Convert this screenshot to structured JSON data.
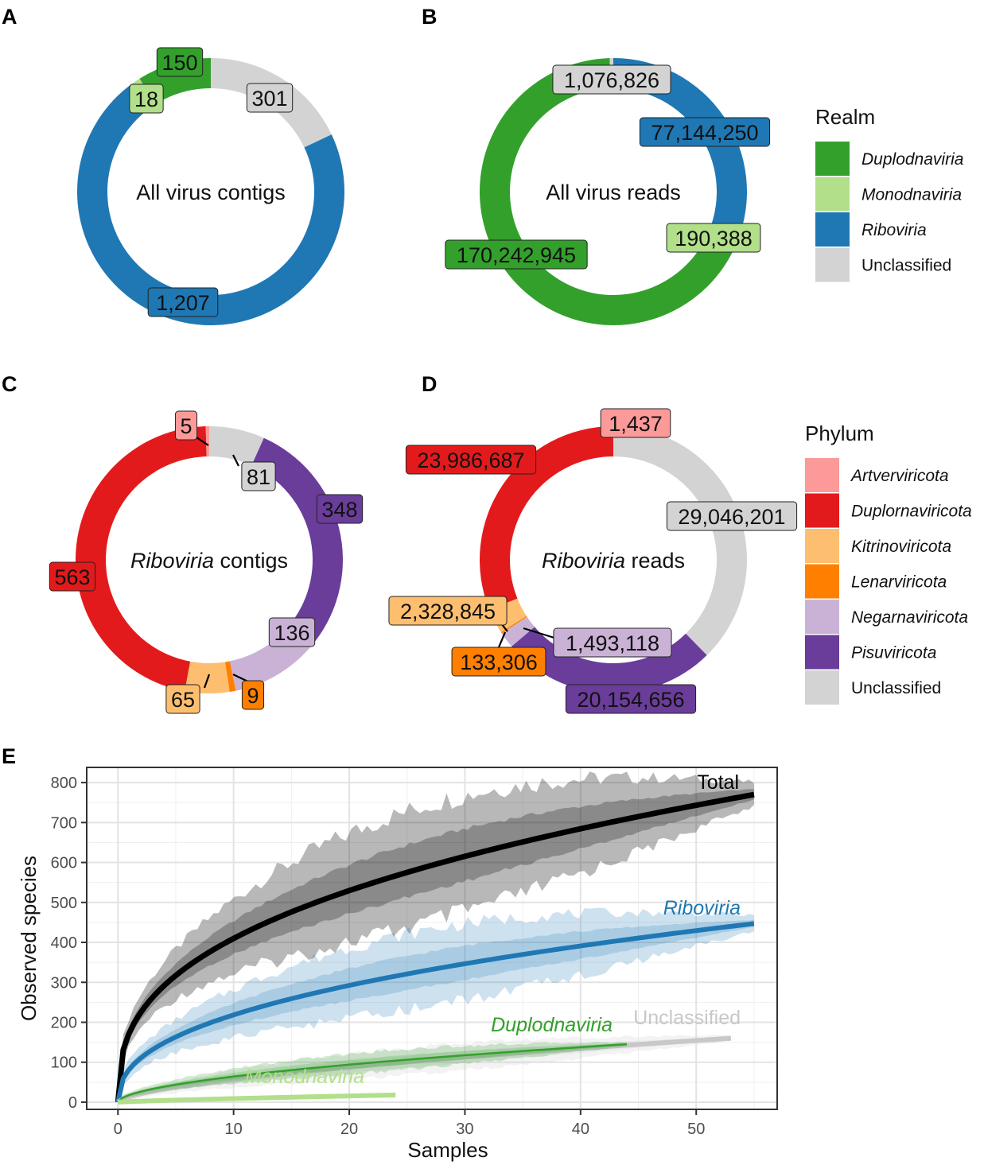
{
  "chart_data": [
    {
      "panel": "A",
      "type": "pie",
      "variant": "donut",
      "center_label": {
        "normal": "All virus contigs",
        "italic": ""
      },
      "legend_group": "realm",
      "slices": [
        {
          "category": "Unclassified",
          "value": 301,
          "label": "301"
        },
        {
          "category": "Riboviria",
          "value": 1207,
          "label": "1,207"
        },
        {
          "category": "Monodnaviria",
          "value": 18,
          "label": "18"
        },
        {
          "category": "Duplodnaviria",
          "value": 150,
          "label": "150"
        }
      ]
    },
    {
      "panel": "B",
      "type": "pie",
      "variant": "donut",
      "center_label": {
        "normal": "All virus reads",
        "italic": ""
      },
      "legend_group": "realm",
      "slices": [
        {
          "category": "Riboviria",
          "value": 77144250,
          "label": "77,144,250"
        },
        {
          "category": "Monodnaviria",
          "value": 190388,
          "label": "190,388"
        },
        {
          "category": "Duplodnaviria",
          "value": 170242945,
          "label": "170,242,945"
        },
        {
          "category": "Unclassified",
          "value": 1076826,
          "label": "1,076,826"
        }
      ]
    },
    {
      "panel": "C",
      "type": "pie",
      "variant": "donut",
      "center_label": {
        "italic": "Riboviria",
        "normal": " contigs"
      },
      "legend_group": "phylum",
      "slices": [
        {
          "category": "Unclassified",
          "value": 81,
          "label": "81"
        },
        {
          "category": "Pisuviricota",
          "value": 348,
          "label": "348"
        },
        {
          "category": "Negarnaviricota",
          "value": 136,
          "label": "136"
        },
        {
          "category": "Lenarviricota",
          "value": 9,
          "label": "9"
        },
        {
          "category": "Kitrinoviricota",
          "value": 65,
          "label": "65"
        },
        {
          "category": "Duplornaviricota",
          "value": 563,
          "label": "563"
        },
        {
          "category": "Artverviricota",
          "value": 5,
          "label": "5"
        }
      ]
    },
    {
      "panel": "D",
      "type": "pie",
      "variant": "donut",
      "center_label": {
        "italic": "Riboviria",
        "normal": " reads"
      },
      "legend_group": "phylum",
      "slices": [
        {
          "category": "Unclassified",
          "value": 29046201,
          "label": "29,046,201"
        },
        {
          "category": "Pisuviricota",
          "value": 20154656,
          "label": "20,154,656"
        },
        {
          "category": "Negarnaviricota",
          "value": 1493118,
          "label": "1,493,118"
        },
        {
          "category": "Lenarviricota",
          "value": 133306,
          "label": "133,306"
        },
        {
          "category": "Kitrinoviricota",
          "value": 2328845,
          "label": "2,328,845"
        },
        {
          "category": "Duplornaviricota",
          "value": 23986687,
          "label": "23,986,687"
        },
        {
          "category": "Artverviricota",
          "value": 1437,
          "label": "1,437"
        }
      ]
    },
    {
      "panel": "E",
      "type": "line",
      "xlabel": "Samples",
      "ylabel": "Observed species",
      "xlim": [
        -2.7,
        57
      ],
      "ylim": [
        -18,
        838
      ],
      "xticks": [
        0,
        10,
        20,
        30,
        40,
        50
      ],
      "yticks": [
        0,
        100,
        200,
        300,
        400,
        500,
        600,
        700,
        800
      ],
      "grid": true,
      "series": [
        {
          "name": "Total",
          "color": "#000000",
          "italic": false,
          "n_max": 55,
          "final": 770,
          "shape": 0.37,
          "band_rel": 0.16
        },
        {
          "name": "Riboviria",
          "color": "#1f78b4",
          "italic": true,
          "n_max": 55,
          "final": 447,
          "shape": 0.42,
          "band_rel": 0.18
        },
        {
          "name": "Unclassified",
          "color": "#c8c8c8",
          "italic": false,
          "n_max": 53,
          "final": 160,
          "shape": 0.62,
          "band_rel": 0.18
        },
        {
          "name": "Duplodnaviria",
          "color": "#33a02c",
          "italic": true,
          "n_max": 44,
          "final": 145,
          "shape": 0.55,
          "band_rel": 0.15
        },
        {
          "name": "Monodnaviria",
          "color": "#b2df8a",
          "italic": true,
          "n_max": 24,
          "final": 18,
          "shape": 0.8,
          "band_rel": 0.2
        }
      ]
    }
  ],
  "panel_letters": [
    "A",
    "B",
    "C",
    "D",
    "E"
  ],
  "legends": {
    "realm": {
      "title": "Realm",
      "items": [
        {
          "name": "Duplodnaviria",
          "italic": true
        },
        {
          "name": "Monodnaviria",
          "italic": true
        },
        {
          "name": "Riboviria",
          "italic": true
        },
        {
          "name": "Unclassified",
          "italic": false
        }
      ]
    },
    "phylum": {
      "title": "Phylum",
      "items": [
        {
          "name": "Artverviricota",
          "italic": true
        },
        {
          "name": "Duplornaviricota",
          "italic": true
        },
        {
          "name": "Kitrinoviricota",
          "italic": true
        },
        {
          "name": "Lenarviricota",
          "italic": true
        },
        {
          "name": "Negarnaviricota",
          "italic": true
        },
        {
          "name": "Pisuviricota",
          "italic": true
        },
        {
          "name": "Unclassified",
          "italic": false
        }
      ]
    }
  },
  "colors": {
    "Duplodnaviria": "#33a02c",
    "Monodnaviria": "#b2df8a",
    "Riboviria": "#1f78b4",
    "Unclassified": "#d3d3d3",
    "Artverviricota": "#fb9a99",
    "Duplornaviricota": "#e31a1c",
    "Kitrinoviricota": "#fdbf6f",
    "Lenarviricota": "#ff7f00",
    "Negarnaviricota": "#cab2d6",
    "Pisuviricota": "#6a3d9a"
  }
}
